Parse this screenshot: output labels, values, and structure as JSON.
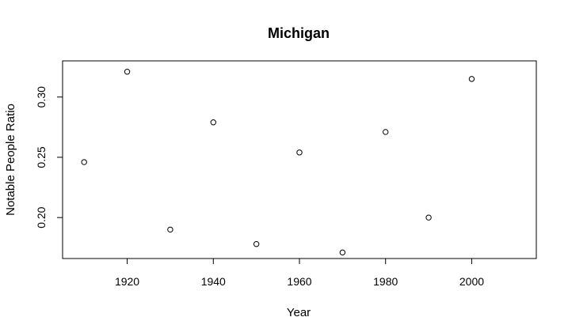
{
  "chart_data": {
    "type": "scatter",
    "title": "Michigan",
    "xlabel": "Year",
    "ylabel": "Notable People Ratio",
    "xlim": [
      1905,
      2015
    ],
    "ylim": [
      0.166,
      0.33
    ],
    "xticks": [
      1920,
      1940,
      1960,
      1980,
      2000
    ],
    "xtick_labels": [
      "1920",
      "1940",
      "1960",
      "1980",
      "2000"
    ],
    "yticks": [
      0.2,
      0.25,
      0.3
    ],
    "ytick_labels": [
      "0.20",
      "0.25",
      "0.30"
    ],
    "grid": false,
    "points": [
      {
        "x": 1910,
        "y": 0.246
      },
      {
        "x": 1920,
        "y": 0.321
      },
      {
        "x": 1930,
        "y": 0.19
      },
      {
        "x": 1940,
        "y": 0.279
      },
      {
        "x": 1950,
        "y": 0.178
      },
      {
        "x": 1960,
        "y": 0.254
      },
      {
        "x": 1970,
        "y": 0.171
      },
      {
        "x": 1980,
        "y": 0.271
      },
      {
        "x": 1990,
        "y": 0.2
      },
      {
        "x": 2000,
        "y": 0.315
      }
    ]
  }
}
